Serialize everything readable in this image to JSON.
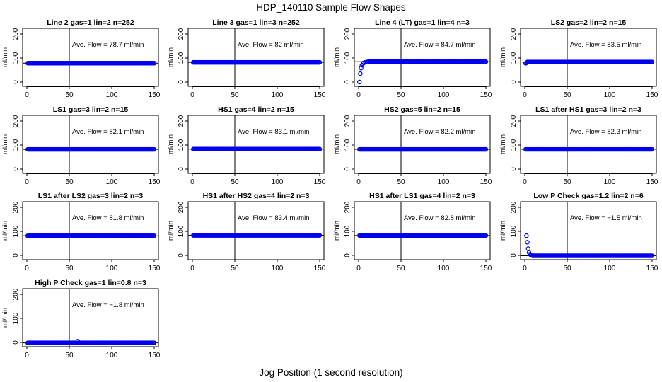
{
  "title": "HDP_140110  Sample Flow Shapes",
  "xlabel": "Jog Position (1 second resolution)",
  "colors": {
    "points": "#0000ee",
    "axes": "#000000"
  },
  "chart_data": [
    {
      "type": "scatter",
      "title": "Line 2 gas=1 lin=2 n=252",
      "ylabel": "ml/min",
      "xlim": [
        0,
        150
      ],
      "ylim": [
        0,
        200
      ],
      "xticks": [
        0,
        50,
        100,
        150
      ],
      "yticks": [
        0,
        100,
        200
      ],
      "vline": 50,
      "hline": 78.7,
      "annotation": "Ave. Flow =  78.7  ml/min",
      "profile": {
        "start": 1,
        "end": 150,
        "steady": 78.7,
        "initial": []
      }
    },
    {
      "type": "scatter",
      "title": "Line 3 gas=1 lin=3 n=252",
      "ylabel": "ml/min",
      "xlim": [
        0,
        150
      ],
      "ylim": [
        0,
        200
      ],
      "xticks": [
        0,
        50,
        100,
        150
      ],
      "yticks": [
        0,
        100,
        200
      ],
      "vline": 50,
      "hline": 82,
      "annotation": "Ave. Flow =  82  ml/min",
      "profile": {
        "start": 1,
        "end": 150,
        "steady": 82,
        "initial": []
      }
    },
    {
      "type": "scatter",
      "title": "Line 4 (LT) gas=1 lin=4 n=3",
      "ylabel": "ml/min",
      "xlim": [
        0,
        150
      ],
      "ylim": [
        0,
        200
      ],
      "xticks": [
        0,
        50,
        100,
        150
      ],
      "yticks": [
        0,
        100,
        200
      ],
      "vline": 50,
      "hline": 84.7,
      "annotation": "Ave. Flow =  84.7  ml/min",
      "profile": {
        "start": 1,
        "end": 150,
        "steady": 84.7,
        "initial": [
          [
            1,
            0
          ],
          [
            2,
            35
          ],
          [
            3,
            58
          ],
          [
            4,
            70
          ],
          [
            5,
            76
          ],
          [
            6,
            80
          ],
          [
            8,
            82
          ],
          [
            10,
            83
          ]
        ]
      }
    },
    {
      "type": "scatter",
      "title": "LS2 gas=2 lin=2 n=15",
      "ylabel": "ml/min",
      "xlim": [
        0,
        150
      ],
      "ylim": [
        0,
        200
      ],
      "xticks": [
        0,
        50,
        100,
        150
      ],
      "yticks": [
        0,
        100,
        200
      ],
      "vline": 50,
      "hline": 83.5,
      "annotation": "Ave. Flow =  83.5  ml/min",
      "profile": {
        "start": 1,
        "end": 150,
        "steady": 83.5,
        "initial": [
          [
            1,
            78
          ],
          [
            2,
            80
          ]
        ]
      }
    },
    {
      "type": "scatter",
      "title": "LS1 gas=3 lin=2 n=15",
      "ylabel": "ml/min",
      "xlim": [
        0,
        150
      ],
      "ylim": [
        0,
        200
      ],
      "xticks": [
        0,
        50,
        100,
        150
      ],
      "yticks": [
        0,
        100,
        200
      ],
      "vline": 50,
      "hline": 82.1,
      "annotation": "Ave. Flow =  82.1  ml/min",
      "profile": {
        "start": 1,
        "end": 150,
        "steady": 82.1,
        "initial": []
      }
    },
    {
      "type": "scatter",
      "title": "HS1 gas=4 lin=2 n=15",
      "ylabel": "ml/min",
      "xlim": [
        0,
        150
      ],
      "ylim": [
        0,
        200
      ],
      "xticks": [
        0,
        50,
        100,
        150
      ],
      "yticks": [
        0,
        100,
        200
      ],
      "vline": 50,
      "hline": 83.1,
      "annotation": "Ave. Flow =  83.1  ml/min",
      "profile": {
        "start": 1,
        "end": 150,
        "steady": 83.1,
        "initial": []
      }
    },
    {
      "type": "scatter",
      "title": "HS2 gas=5 lin=2 n=15",
      "ylabel": "ml/min",
      "xlim": [
        0,
        150
      ],
      "ylim": [
        0,
        200
      ],
      "xticks": [
        0,
        50,
        100,
        150
      ],
      "yticks": [
        0,
        100,
        200
      ],
      "vline": 50,
      "hline": 82.2,
      "annotation": "Ave. Flow =  82.2  ml/min",
      "profile": {
        "start": 1,
        "end": 150,
        "steady": 82.2,
        "initial": []
      }
    },
    {
      "type": "scatter",
      "title": "LS1 after HS1 gas=3 lin=2 n=3",
      "ylabel": "ml/min",
      "xlim": [
        0,
        150
      ],
      "ylim": [
        0,
        200
      ],
      "xticks": [
        0,
        50,
        100,
        150
      ],
      "yticks": [
        0,
        100,
        200
      ],
      "vline": 50,
      "hline": 82.3,
      "annotation": "Ave. Flow =  82.3  ml/min",
      "profile": {
        "start": 1,
        "end": 150,
        "steady": 82.3,
        "initial": []
      }
    },
    {
      "type": "scatter",
      "title": "LS1 after LS2 gas=3 lin=2 n=3",
      "ylabel": "ml/min",
      "xlim": [
        0,
        150
      ],
      "ylim": [
        0,
        200
      ],
      "xticks": [
        0,
        50,
        100,
        150
      ],
      "yticks": [
        0,
        100,
        200
      ],
      "vline": 50,
      "hline": 81.8,
      "annotation": "Ave. Flow =  81.8  ml/min",
      "profile": {
        "start": 1,
        "end": 150,
        "steady": 81.8,
        "initial": []
      }
    },
    {
      "type": "scatter",
      "title": "HS1 after HS2 gas=4 lin=2 n=3",
      "ylabel": "ml/min",
      "xlim": [
        0,
        150
      ],
      "ylim": [
        0,
        200
      ],
      "xticks": [
        0,
        50,
        100,
        150
      ],
      "yticks": [
        0,
        100,
        200
      ],
      "vline": 50,
      "hline": 83.4,
      "annotation": "Ave. Flow =  83.4  ml/min",
      "profile": {
        "start": 1,
        "end": 150,
        "steady": 83.4,
        "initial": []
      }
    },
    {
      "type": "scatter",
      "title": "HS1 after LS1 gas=4 lin=2 n=3",
      "ylabel": "ml/min",
      "xlim": [
        0,
        150
      ],
      "ylim": [
        0,
        200
      ],
      "xticks": [
        0,
        50,
        100,
        150
      ],
      "yticks": [
        0,
        100,
        200
      ],
      "vline": 50,
      "hline": 82.8,
      "annotation": "Ave. Flow =  82.8  ml/min",
      "profile": {
        "start": 1,
        "end": 150,
        "steady": 82.8,
        "initial": []
      }
    },
    {
      "type": "scatter",
      "title": "Low P Check gas=1.2 lin=2 n=6",
      "ylabel": "ml/min",
      "xlim": [
        0,
        150
      ],
      "ylim": [
        0,
        200
      ],
      "xticks": [
        0,
        50,
        100,
        150
      ],
      "yticks": [
        0,
        100,
        200
      ],
      "vline": 50,
      "hline": -1.5,
      "annotation": "Ave. Flow =  −1.5  ml/min",
      "profile": {
        "start": 1,
        "end": 150,
        "steady": -1.5,
        "initial": [
          [
            2,
            82
          ],
          [
            3,
            55
          ],
          [
            4,
            28
          ],
          [
            5,
            12
          ],
          [
            6,
            5
          ],
          [
            7,
            2
          ],
          [
            8,
            0
          ]
        ]
      }
    },
    {
      "type": "scatter",
      "title": "High P Check gas=1 lin=0.8 n=3",
      "ylabel": "ml/min",
      "xlim": [
        0,
        150
      ],
      "ylim": [
        0,
        200
      ],
      "xticks": [
        0,
        50,
        100,
        150
      ],
      "yticks": [
        0,
        100,
        200
      ],
      "vline": 50,
      "hline": -1.8,
      "annotation": "Ave. Flow =  −1.8  ml/min",
      "profile": {
        "start": 1,
        "end": 150,
        "steady": -1.8,
        "initial": [],
        "extra": [
          [
            60,
            5
          ]
        ]
      }
    }
  ]
}
